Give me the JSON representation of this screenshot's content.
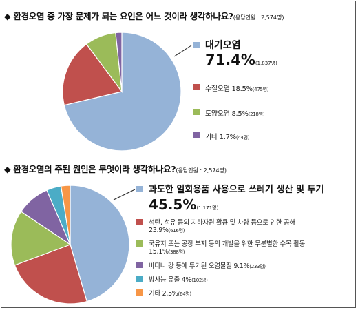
{
  "chart_data": [
    {
      "type": "pie",
      "title": "◆ 환경오염 중 가장 문제가 되는 요인은 어느 것이라 생각하나요?",
      "respondents": "(응답인원 : 2,574명)",
      "series": [
        {
          "label": "대기오염",
          "percent": "71.4%",
          "count": "(1,837명)",
          "value": 71.4,
          "color": "#95B3D7"
        },
        {
          "label": "수질오염 18.5%",
          "count": "(475명)",
          "value": 18.5,
          "color": "#C0504D"
        },
        {
          "label": "토양오염 8.5%",
          "count": "(218명)",
          "value": 8.5,
          "color": "#9BBB59"
        },
        {
          "label": "기타 1.7%",
          "count": "(44명)",
          "value": 1.7,
          "color": "#8064A2"
        }
      ]
    },
    {
      "type": "pie",
      "title": "◆ 환경오염의 주된 원인은 무엇이라 생각하나요?",
      "respondents": "(응답인원 : 2,574명)",
      "series": [
        {
          "label": "과도한 일회용품 사용으로 쓰레기 생산 및 투기",
          "percent": "45.5%",
          "count": "(1,171명)",
          "value": 45.5,
          "color": "#95B3D7"
        },
        {
          "label": "석탄, 석유 등의 지하자원 활용 및 차량 등으로 인한 공해",
          "label2": "23.9%",
          "count": "(616명)",
          "value": 23.9,
          "color": "#C0504D"
        },
        {
          "label": "국유지 또는 공장 부지 등의 개발을 위한 무분별한 수목 활동",
          "label2": "15.1%",
          "count": "(388명)",
          "value": 15.1,
          "color": "#9BBB59"
        },
        {
          "label": "바다나 강 등에 투기된 오염물질 9.1%",
          "count": "(233명)",
          "value": 9.1,
          "color": "#8064A2"
        },
        {
          "label": "방사능 유출 4%",
          "count": "(102명)",
          "value": 4.0,
          "color": "#4BACC6"
        },
        {
          "label": "기타 2.5%",
          "count": "(64명)",
          "value": 2.5,
          "color": "#F79646"
        }
      ]
    }
  ]
}
